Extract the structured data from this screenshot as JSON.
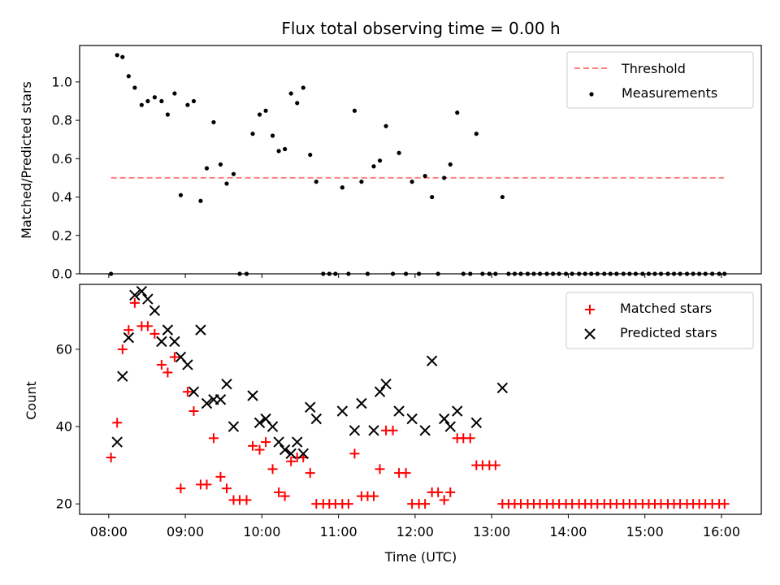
{
  "chart_data": [
    {
      "type": "scatter",
      "title": "Flux total observing time = 0.00 h",
      "ylabel": "Matched/Predicted stars",
      "xlabel": "",
      "xlim": [
        7.62,
        16.52
      ],
      "ylim": [
        0,
        1.19
      ],
      "yticks": [
        0.0,
        0.2,
        0.4,
        0.6,
        0.8,
        1.0
      ],
      "ytick_labels": [
        "0.0",
        "0.2",
        "0.4",
        "0.6",
        "0.8",
        "1.0"
      ],
      "legend": [
        "Threshold",
        "Measurements"
      ],
      "threshold": {
        "name": "Threshold",
        "value": 0.5,
        "x_start": 8.03,
        "x_end": 16.03,
        "color": "#ff7f7f"
      },
      "series": [
        {
          "name": "Measurements",
          "color": "#000000",
          "x": [
            8.03,
            8.11,
            8.18,
            8.26,
            8.34,
            8.43,
            8.51,
            8.6,
            8.69,
            8.77,
            8.86,
            8.94,
            9.03,
            9.11,
            9.2,
            9.28,
            9.37,
            9.46,
            9.54,
            9.63,
            9.71,
            9.8,
            9.88,
            9.97,
            10.05,
            10.14,
            10.22,
            10.3,
            10.38,
            10.46,
            10.54,
            10.63,
            10.71,
            10.8,
            10.88,
            10.96,
            11.05,
            11.13,
            11.21,
            11.3,
            11.38,
            11.46,
            11.54,
            11.62,
            11.71,
            11.79,
            11.88,
            11.96,
            12.05,
            12.13,
            12.22,
            12.3,
            12.38,
            12.46,
            12.55,
            12.63,
            12.72,
            12.8,
            12.88,
            12.97,
            13.05,
            13.14,
            13.22,
            13.3,
            13.38,
            13.47,
            13.55,
            13.63,
            13.72,
            13.8,
            13.88,
            13.97,
            14.05,
            14.14,
            14.22,
            14.3,
            14.38,
            14.47,
            14.55,
            14.63,
            14.72,
            14.8,
            14.88,
            14.97,
            15.05,
            15.13,
            15.21,
            15.3,
            15.38,
            15.46,
            15.55,
            15.63,
            15.71,
            15.79,
            15.88,
            15.97,
            16.04
          ],
          "y": [
            0.0,
            1.14,
            1.13,
            1.03,
            0.97,
            0.88,
            0.9,
            0.92,
            0.9,
            0.83,
            0.94,
            0.41,
            0.88,
            0.9,
            0.38,
            0.55,
            0.79,
            0.57,
            0.47,
            0.52,
            0.0,
            0.0,
            0.73,
            0.83,
            0.85,
            0.72,
            0.64,
            0.65,
            0.94,
            0.89,
            0.97,
            0.62,
            0.48,
            0.0,
            0.0,
            0.0,
            0.45,
            0.0,
            0.85,
            0.48,
            0.0,
            0.56,
            0.59,
            0.77,
            0.0,
            0.63,
            0.0,
            0.48,
            0.0,
            0.51,
            0.4,
            0.0,
            0.5,
            0.57,
            0.84,
            0.0,
            0.0,
            0.73,
            0.0,
            0.0,
            0.0,
            0.4,
            0.0,
            0.0,
            0.0,
            0.0,
            0.0,
            0.0,
            0.0,
            0.0,
            0.0,
            0.0,
            0.0,
            0.0,
            0.0,
            0.0,
            0.0,
            0.0,
            0.0,
            0.0,
            0.0,
            0.0,
            0.0,
            0.0,
            0.0,
            0.0,
            0.0,
            0.0,
            0.0,
            0.0,
            0.0,
            0.0,
            0.0,
            0.0,
            0.0,
            0.0,
            0.0
          ]
        }
      ]
    },
    {
      "type": "scatter",
      "title": "",
      "ylabel": "Count",
      "xlabel": "Time (UTC)",
      "xlim": [
        7.62,
        16.52
      ],
      "ylim": [
        17.3,
        76.8
      ],
      "yticks": [
        20,
        40,
        60
      ],
      "ytick_labels": [
        "20",
        "40",
        "60"
      ],
      "xticks": [
        8,
        9,
        10,
        11,
        12,
        13,
        14,
        15,
        16
      ],
      "xtick_labels": [
        "08:00",
        "09:00",
        "10:00",
        "11:00",
        "12:00",
        "13:00",
        "14:00",
        "15:00",
        "16:00"
      ],
      "legend": [
        "Matched stars",
        "Predicted stars"
      ],
      "series": [
        {
          "name": "Matched stars",
          "marker": "plus",
          "color": "#ff0000",
          "x": [
            8.03,
            8.11,
            8.18,
            8.26,
            8.34,
            8.43,
            8.51,
            8.6,
            8.69,
            8.77,
            8.86,
            8.94,
            9.03,
            9.11,
            9.2,
            9.28,
            9.37,
            9.46,
            9.54,
            9.63,
            9.71,
            9.8,
            9.88,
            9.97,
            10.05,
            10.14,
            10.22,
            10.3,
            10.38,
            10.46,
            10.54,
            10.63,
            10.71,
            10.8,
            10.88,
            10.96,
            11.05,
            11.13,
            11.21,
            11.3,
            11.38,
            11.46,
            11.54,
            11.62,
            11.71,
            11.79,
            11.88,
            11.96,
            12.05,
            12.13,
            12.22,
            12.3,
            12.38,
            12.46,
            12.55,
            12.63,
            12.72,
            12.8,
            12.88,
            12.97,
            13.05,
            13.14,
            13.22,
            13.3,
            13.38,
            13.47,
            13.55,
            13.63,
            13.72,
            13.8,
            13.88,
            13.97,
            14.05,
            14.14,
            14.22,
            14.3,
            14.38,
            14.47,
            14.55,
            14.63,
            14.72,
            14.8,
            14.88,
            14.97,
            15.05,
            15.13,
            15.21,
            15.3,
            15.38,
            15.46,
            15.55,
            15.63,
            15.71,
            15.79,
            15.88,
            15.97,
            16.04
          ],
          "y": [
            32,
            41,
            60,
            65,
            72,
            66,
            66,
            64,
            56,
            54,
            58,
            24,
            49,
            44,
            25,
            25,
            37,
            27,
            24,
            21,
            21,
            21,
            35,
            34,
            36,
            29,
            23,
            22,
            31,
            32,
            32,
            28,
            20,
            20,
            20,
            20,
            20,
            20,
            33,
            22,
            22,
            22,
            29,
            39,
            39,
            28,
            28,
            20,
            20,
            20,
            23,
            23,
            21,
            23,
            37,
            37,
            37,
            30,
            30,
            30,
            30,
            20,
            20,
            20,
            20,
            20,
            20,
            20,
            20,
            20,
            20,
            20,
            20,
            20,
            20,
            20,
            20,
            20,
            20,
            20,
            20,
            20,
            20,
            20,
            20,
            20,
            20,
            20,
            20,
            20,
            20,
            20,
            20,
            20,
            20,
            20,
            20
          ]
        },
        {
          "name": "Predicted stars",
          "marker": "x",
          "color": "#000000",
          "x": [
            8.11,
            8.18,
            8.26,
            8.34,
            8.43,
            8.51,
            8.6,
            8.69,
            8.77,
            8.86,
            8.94,
            9.03,
            9.11,
            9.2,
            9.28,
            9.37,
            9.46,
            9.54,
            9.63,
            9.88,
            9.97,
            10.05,
            10.14,
            10.22,
            10.3,
            10.38,
            10.46,
            10.54,
            10.63,
            10.71,
            11.05,
            11.21,
            11.3,
            11.46,
            11.54,
            11.62,
            11.79,
            11.96,
            12.13,
            12.22,
            12.38,
            12.46,
            12.55,
            12.8,
            13.14
          ],
          "y": [
            36,
            53,
            63,
            74,
            75,
            73,
            70,
            62,
            65,
            62,
            58,
            56,
            49,
            65,
            46,
            47,
            47,
            51,
            40,
            48,
            41,
            42,
            40,
            36,
            34,
            33,
            36,
            33,
            45,
            42,
            44,
            39,
            46,
            39,
            49,
            51,
            44,
            42,
            39,
            57,
            42,
            40,
            44,
            41,
            50
          ]
        }
      ]
    }
  ]
}
